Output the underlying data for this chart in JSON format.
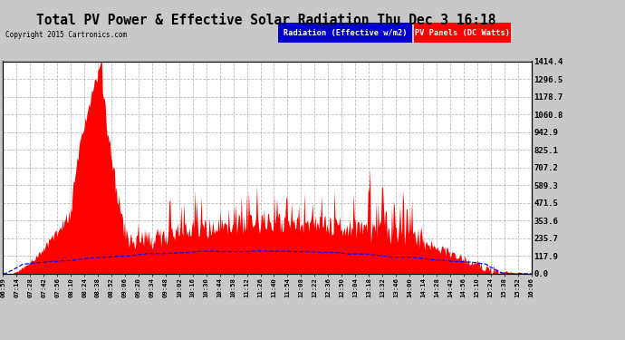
{
  "title": "Total PV Power & Effective Solar Radiation Thu Dec 3 16:18",
  "copyright": "Copyright 2015 Cartronics.com",
  "legend_blue_label": "Radiation (Effective w/m2)",
  "legend_red_label": "PV Panels (DC Watts)",
  "ymax": 1414.4,
  "yticks": [
    0.0,
    117.9,
    235.7,
    353.6,
    471.5,
    589.3,
    707.2,
    825.1,
    942.9,
    1060.8,
    1178.7,
    1296.5,
    1414.4
  ],
  "background_color": "#c8c8c8",
  "plot_bg_color": "#ffffff",
  "grid_color": "#aaaaaa",
  "red_fill_color": "#ff0000",
  "blue_line_color": "#0000ff",
  "x_labels": [
    "06:59",
    "07:14",
    "07:28",
    "07:42",
    "07:56",
    "08:10",
    "08:24",
    "08:38",
    "08:52",
    "09:06",
    "09:20",
    "09:34",
    "09:48",
    "10:02",
    "10:16",
    "10:30",
    "10:44",
    "10:58",
    "11:12",
    "11:26",
    "11:40",
    "11:54",
    "12:08",
    "12:22",
    "12:36",
    "12:50",
    "13:04",
    "13:18",
    "13:32",
    "13:46",
    "14:00",
    "14:14",
    "14:28",
    "14:42",
    "14:56",
    "15:10",
    "15:24",
    "15:38",
    "15:52",
    "16:06"
  ]
}
